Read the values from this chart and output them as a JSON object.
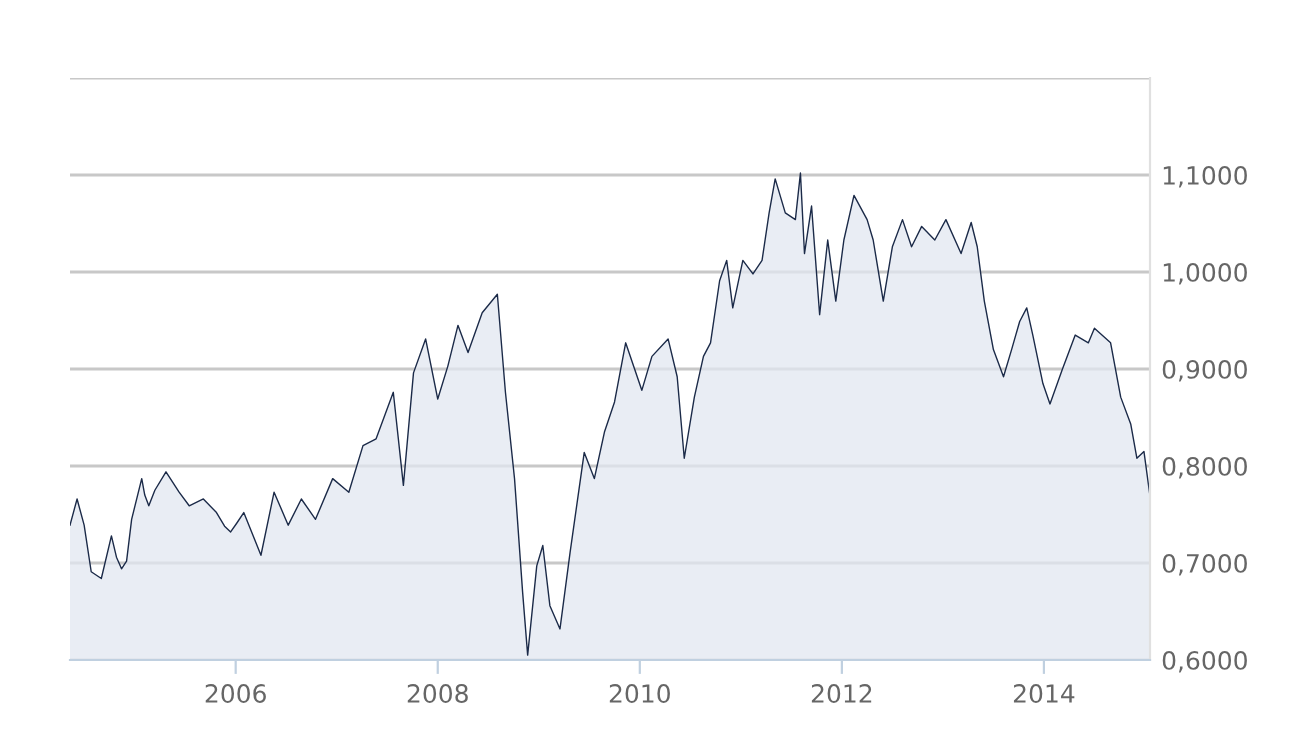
{
  "chart_data": {
    "type": "area",
    "x": [
      2004.36,
      2004.43,
      2004.5,
      2004.57,
      2004.67,
      2004.77,
      2004.82,
      2004.87,
      2004.92,
      2004.97,
      2005.07,
      2005.1,
      2005.14,
      2005.2,
      2005.31,
      2005.44,
      2005.54,
      2005.68,
      2005.81,
      2005.89,
      2005.95,
      2006.01,
      2006.08,
      2006.25,
      2006.38,
      2006.52,
      2006.65,
      2006.79,
      2006.96,
      2007.12,
      2007.26,
      2007.39,
      2007.56,
      2007.66,
      2007.76,
      2007.88,
      2008.0,
      2008.1,
      2008.2,
      2008.3,
      2008.44,
      2008.59,
      2008.67,
      2008.76,
      2008.84,
      2008.89,
      2008.98,
      2009.04,
      2009.11,
      2009.21,
      2009.31,
      2009.45,
      2009.55,
      2009.65,
      2009.75,
      2009.86,
      2010.02,
      2010.12,
      2010.28,
      2010.37,
      2010.44,
      2010.54,
      2010.63,
      2010.7,
      2010.79,
      2010.86,
      2010.92,
      2011.02,
      2011.12,
      2011.21,
      2011.28,
      2011.34,
      2011.44,
      2011.54,
      2011.59,
      2011.63,
      2011.7,
      2011.78,
      2011.86,
      2011.94,
      2012.02,
      2012.12,
      2012.25,
      2012.31,
      2012.41,
      2012.5,
      2012.6,
      2012.69,
      2012.79,
      2012.92,
      2013.03,
      2013.18,
      2013.28,
      2013.34,
      2013.41,
      2013.5,
      2013.6,
      2013.68,
      2013.76,
      2013.83,
      2013.89,
      2013.99,
      2014.06,
      2014.18,
      2014.31,
      2014.44,
      2014.5,
      2014.66,
      2014.76,
      2014.86,
      2014.92,
      2014.99,
      2015.05
    ],
    "series": [
      {
        "color": "#1b2a48",
        "values": [
          0.739,
          0.766,
          0.739,
          0.691,
          0.684,
          0.728,
          0.706,
          0.694,
          0.702,
          0.745,
          0.787,
          0.77,
          0.759,
          0.775,
          0.794,
          0.773,
          0.759,
          0.766,
          0.752,
          0.738,
          0.732,
          0.741,
          0.752,
          0.708,
          0.773,
          0.739,
          0.766,
          0.745,
          0.787,
          0.773,
          0.821,
          0.828,
          0.876,
          0.78,
          0.896,
          0.931,
          0.869,
          0.903,
          0.945,
          0.917,
          0.958,
          0.977,
          0.876,
          0.787,
          0.67,
          0.605,
          0.697,
          0.718,
          0.656,
          0.632,
          0.711,
          0.814,
          0.787,
          0.835,
          0.866,
          0.927,
          0.878,
          0.913,
          0.931,
          0.892,
          0.808,
          0.871,
          0.913,
          0.927,
          0.991,
          1.012,
          0.963,
          1.012,
          0.998,
          1.012,
          1.061,
          1.096,
          1.061,
          1.054,
          1.102,
          1.019,
          1.068,
          0.956,
          1.033,
          0.97,
          1.033,
          1.079,
          1.054,
          1.033,
          0.97,
          1.026,
          1.054,
          1.026,
          1.047,
          1.033,
          1.054,
          1.019,
          1.051,
          1.026,
          0.97,
          0.92,
          0.892,
          0.92,
          0.949,
          0.963,
          0.935,
          0.885,
          0.864,
          0.899,
          0.935,
          0.927,
          0.942,
          0.927,
          0.871,
          0.843,
          0.808,
          0.815,
          0.769
        ]
      }
    ],
    "xlim": [
      2004.36,
      2015.05
    ],
    "ylim": [
      0.6,
      1.2
    ],
    "xticks": [
      2006,
      2008,
      2010,
      2012,
      2014
    ],
    "yticks": [
      {
        "value": 0.6,
        "label": "0,6000"
      },
      {
        "value": 0.7,
        "label": "0,7000"
      },
      {
        "value": 0.8,
        "label": "0,8000"
      },
      {
        "value": 0.9,
        "label": "0,9000"
      },
      {
        "value": 1.0,
        "label": "1,0000"
      },
      {
        "value": 1.1,
        "label": "1,1000"
      },
      {
        "value": 1.2,
        "label": null
      }
    ],
    "grid": "y",
    "legend": false
  }
}
